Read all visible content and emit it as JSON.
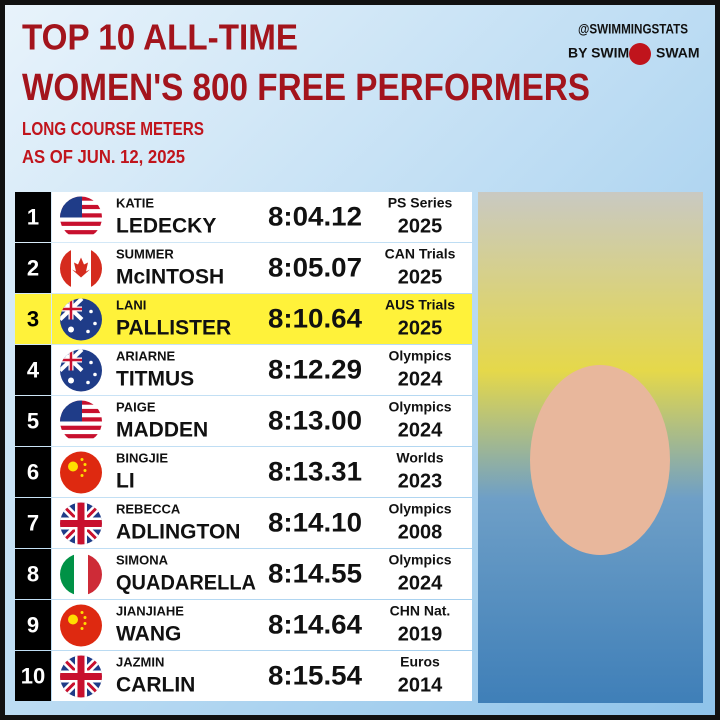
{
  "header": {
    "title_lines": [
      "TOP 10 ALL-TIME",
      "WOMEN'S 800 FREE PERFORMERS"
    ],
    "subtitle_lines": [
      "LONG COURSE METERS",
      "AS OF JUN. 12, 2025"
    ],
    "brand_lines": [
      "@SWIMMINGSTATS",
      "BY SWIM",
      "SWAM"
    ]
  },
  "table": {
    "rows": [
      [
        "1",
        "KATIE",
        "LEDECKY",
        "8:04.12",
        "PS Series",
        "2025"
      ],
      [
        "2",
        "SUMMER",
        "McINTOSH",
        "8:05.07",
        "CAN Trials",
        "2025"
      ],
      [
        "3",
        "LANI",
        "PALLISTER",
        "8:10.64",
        "AUS Trials",
        "2025"
      ],
      [
        "4",
        "ARIARNE",
        "TITMUS",
        "8:12.29",
        "Olympics",
        "2024"
      ],
      [
        "5",
        "PAIGE",
        "MADDEN",
        "8:13.00",
        "Olympics",
        "2024"
      ],
      [
        "6",
        "BINGJIE",
        "LI",
        "8:13.31",
        "Worlds",
        "2023"
      ],
      [
        "7",
        "REBECCA",
        "ADLINGTON",
        "8:14.10",
        "Olympics",
        "2008"
      ],
      [
        "8",
        "SIMONA",
        "QUADARELLA",
        "8:14.55",
        "Olympics",
        "2024"
      ],
      [
        "9",
        "JIANJIAHE",
        "WANG",
        "8:14.64",
        "CHN Nat.",
        "2019"
      ],
      [
        "10",
        "JAZMIN",
        "CARLIN",
        "8:15.54",
        "Euros",
        "2014"
      ]
    ]
  }
}
